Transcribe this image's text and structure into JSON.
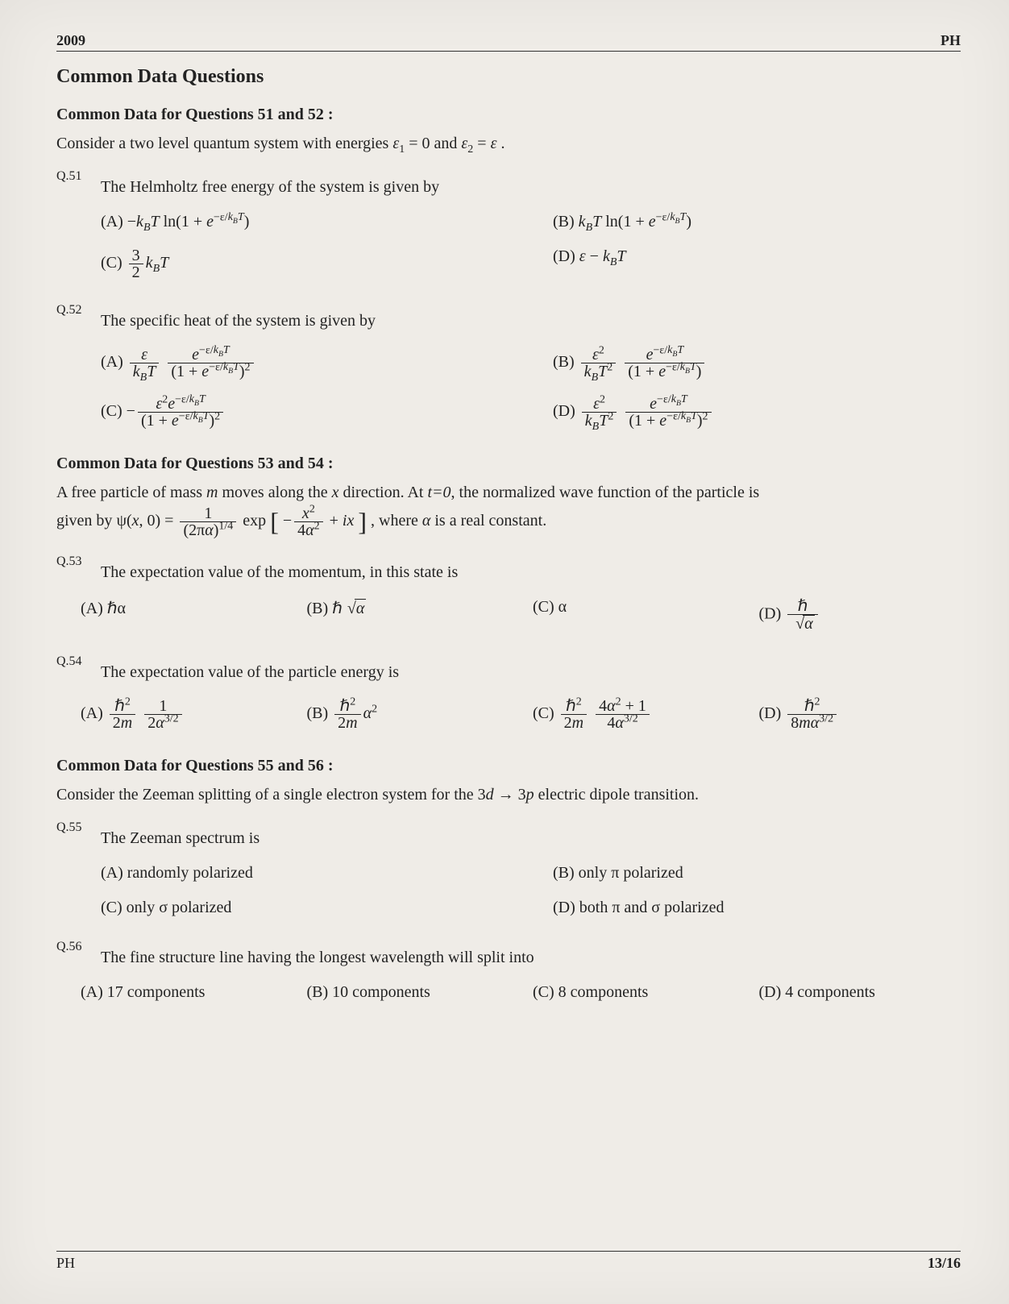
{
  "header": {
    "year": "2009",
    "subject": "PH"
  },
  "footer": {
    "subject": "PH",
    "page": "13/16"
  },
  "section_title": "Common Data Questions",
  "group51_52": {
    "heading": "Common Data for Questions 51 and 52 :",
    "intro_pre": "Consider a two level quantum system with energies ",
    "intro_eq1": "ε₁ = 0",
    "intro_mid": " and ",
    "intro_eq2": "ε₂ = ε",
    "intro_post": " ."
  },
  "q51": {
    "num": "Q.51",
    "text": "The Helmholtz free energy of the system is given by",
    "A_label": "(A) ",
    "B_label": "(B) ",
    "C_label": "(C) ",
    "D_label": "(D) ",
    "A_math": "−k_B T ln(1 + e^{−ε/k_B T})",
    "B_math": "k_B T ln(1 + e^{−ε/k_B T})",
    "C_num": "3",
    "C_den": "2",
    "C_post": "k_B T",
    "D_math": "ε − k_B T"
  },
  "q52": {
    "num": "Q.52",
    "text": "The specific heat of the system is given by",
    "A_label": "(A) ",
    "B_label": "(B) ",
    "C_label": "(C) ",
    "D_label": "(D) "
  },
  "group53_54": {
    "heading": "Common Data for Questions 53 and 54 :",
    "intro_line1_pre": "A free particle of mass ",
    "intro_m": "m",
    "intro_line1_mid": " moves along the ",
    "intro_x": "x",
    "intro_line1_post": " direction. At ",
    "intro_t0": "t=0",
    "intro_line1_end": ", the normalized wave function of the particle is",
    "intro_line2_pre": "given by ",
    "alpha_txt": "α",
    "intro_where": ", where ",
    "intro_where_end": " is a real constant."
  },
  "q53": {
    "num": "Q.53",
    "text": "The expectation value of the momentum, in this state is",
    "A": "(A) ℏα",
    "B_label": "(B) ",
    "C": "(C) α",
    "D_label": "(D) "
  },
  "q54": {
    "num": "Q.54",
    "text": "The expectation value of the particle energy is",
    "A_label": "(A) ",
    "B_label": "(B) ",
    "C_label": "(C) ",
    "D_label": "(D) "
  },
  "group55_56": {
    "heading": "Common Data for Questions 55 and 56 :",
    "intro_pre": "Consider the Zeeman splitting of a single electron system for the 3",
    "intro_d": "d",
    "intro_arrow": " → 3",
    "intro_p": "p",
    "intro_post": " electric dipole transition."
  },
  "q55": {
    "num": "Q.55",
    "text": "The Zeeman spectrum is",
    "A": "(A) randomly polarized",
    "B": "(B) only π polarized",
    "C": "(C) only σ polarized",
    "D": "(D) both π and σ polarized"
  },
  "q56": {
    "num": "Q.56",
    "text": "The fine structure line having the longest wavelength will split into",
    "A": "(A) 17 components",
    "B": "(B) 10 components",
    "C": "(C) 8 components",
    "D": "(D) 4 components"
  },
  "colors": {
    "page_bg": "#efece7",
    "text": "#222222",
    "rule": "#333333"
  },
  "fontsize_pt": {
    "body": 15,
    "title": 18,
    "subhead": 15
  }
}
